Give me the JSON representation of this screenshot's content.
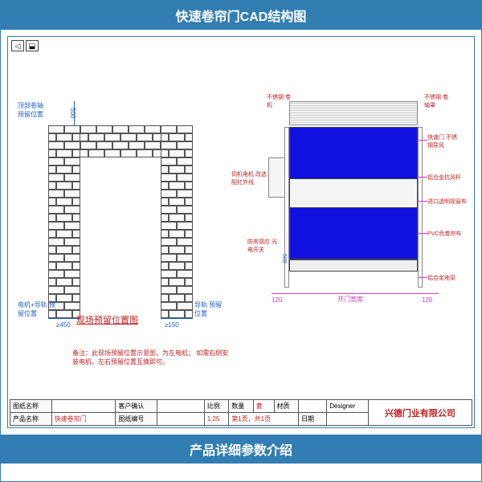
{
  "header": {
    "title": "快速卷帘门CAD结构图"
  },
  "footer": {
    "title": "产品详细参数介绍"
  },
  "left_diagram": {
    "label_top_roller": "顶部卷轴\n预留位置",
    "dim_top": "500",
    "label_motor": "电机+导轨\n预留位置",
    "dim_motor": "≥450",
    "label_rail": "导轨\n预留位置",
    "dim_rail": "≥150",
    "center_title": "现场预留位置图",
    "note": "备注：此现场预留位置示意图，为左电机；\n如需右侧安装电机，左右预留位置互换即可。"
  },
  "right_diagram": {
    "callouts": {
      "top_left": "不锈钢\n卷机",
      "top_right": "不锈钢\n卷轴罩",
      "motor_box": "伺机电机\n改选配红外线",
      "door_right1": "快速门\n不锈钢导风",
      "door_right2": "铝合金抗风杆",
      "door_right3": "进口透明视窗布",
      "door_right4": "PVC色卷帘布",
      "safety": "防夹感应\n光电开关",
      "bottom_rail": "铝合金地梁"
    },
    "dims": {
      "left_gap": "120",
      "right_gap": "120",
      "width_label": "开门宽度",
      "height": "500"
    }
  },
  "title_block": {
    "row1": {
      "drawing_name_label": "图纸名称",
      "drawing_name": "",
      "customer_label": "客户确认",
      "customer": "",
      "scale_label": "比例",
      "qty_label": "数量",
      "qty": "套",
      "material_label": "材质",
      "designer_label": "Designer"
    },
    "row2": {
      "product_label": "产品名称",
      "product": "快速卷帘门",
      "drawing_no_label": "图纸编号",
      "drawing_no": "",
      "scale": "1:25",
      "page": "第1页，共1页",
      "date_label": "日期"
    },
    "company": "兴德门业有限公司"
  },
  "colors": {
    "primary": "#327eb3",
    "accent_red": "#c02020",
    "accent_blue": "#2060d0",
    "accent_magenta": "#d040c0",
    "panel_blue": "#1010e0"
  }
}
